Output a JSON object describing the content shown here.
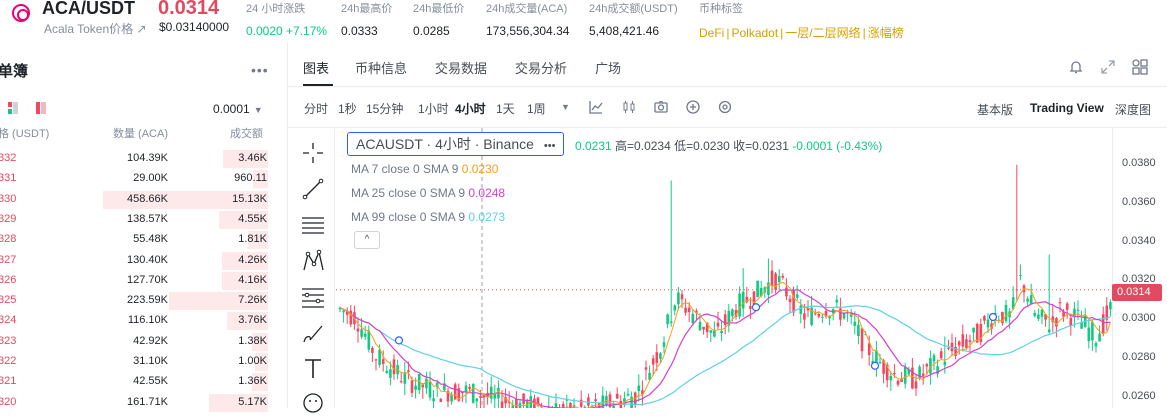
{
  "header": {
    "pair": "ACA/USDT",
    "subname": "Acala Token价格 ↗",
    "price": "0.0314",
    "usd_price": "$0.03140000",
    "change_label": "24 小时涨跌",
    "change_value": "0.0020 +7.17%",
    "high_label": "24h最高价",
    "high_value": "0.0333",
    "low_label": "24h最低价",
    "low_value": "0.0285",
    "vol_aca_label": "24h成交量(ACA)",
    "vol_aca_value": "173,556,304.34",
    "vol_usdt_label": "24h成交额(USDT)",
    "vol_usdt_value": "5,408,421.46",
    "tags_label": "币种标签",
    "tags": [
      "DeFi",
      "Polkadot",
      "一层/二层网络",
      "涨幅榜"
    ]
  },
  "orderbook": {
    "title": "单簿",
    "more": "•••",
    "precision": "0.0001",
    "col_price": "格 (USDT)",
    "col_qty": "数量 (ACA)",
    "col_total": "成交额",
    "rows": [
      {
        "price": "332",
        "qty": "104.39K",
        "total": "3.46K",
        "depth": 0.27
      },
      {
        "price": "331",
        "qty": "29.00K",
        "total": "960.11",
        "depth": 0.09
      },
      {
        "price": "330",
        "qty": "458.66K",
        "total": "15.13K",
        "depth": 1.0
      },
      {
        "price": "329",
        "qty": "138.57K",
        "total": "4.55K",
        "depth": 0.3
      },
      {
        "price": "328",
        "qty": "55.48K",
        "total": "1.81K",
        "depth": 0.12
      },
      {
        "price": "327",
        "qty": "130.40K",
        "total": "4.26K",
        "depth": 0.28
      },
      {
        "price": "326",
        "qty": "127.70K",
        "total": "4.16K",
        "depth": 0.28
      },
      {
        "price": "325",
        "qty": "223.59K",
        "total": "7.26K",
        "depth": 0.6
      },
      {
        "price": "324",
        "qty": "116.10K",
        "total": "3.76K",
        "depth": 0.25
      },
      {
        "price": "323",
        "qty": "42.92K",
        "total": "1.38K",
        "depth": 0.1
      },
      {
        "price": "322",
        "qty": "31.10K",
        "total": "1.00K",
        "depth": 0.08
      },
      {
        "price": "321",
        "qty": "42.55K",
        "total": "1.36K",
        "depth": 0.1
      },
      {
        "price": "320",
        "qty": "161.71K",
        "total": "5.17K",
        "depth": 0.36
      }
    ]
  },
  "tabs": [
    "图表",
    "币种信息",
    "交易数据",
    "交易分析",
    "广场"
  ],
  "timeframes": [
    "分时",
    "1秒",
    "15分钟",
    "1小时",
    "4小时",
    "1天",
    "1周"
  ],
  "active_timeframe": "4小时",
  "views": [
    "基本版",
    "Trading View",
    "深度图"
  ],
  "chart": {
    "legend": "ACAUSDT · 4小时 · Binance",
    "legend_dots": "•••",
    "ohlc_open": "0.0231",
    "ohlc_high": "高=0.0234",
    "ohlc_low": "低=0.0230",
    "ohlc_close": "收=0.0231",
    "ohlc_change": "-0.0001 (-0.43%)",
    "ma7_label": "MA 7 close 0 SMA 9",
    "ma7_value": "0.0230",
    "ma25_label": "MA 25 close 0 SMA 9",
    "ma25_value": "0.0248",
    "ma99_label": "MA 99 close 0 SMA 9",
    "ma99_value": "0.0273",
    "collapse": "^",
    "current_price": "0.0314",
    "axis_ticks": [
      "0.0380",
      "0.0360",
      "0.0340",
      "0.0320",
      "0.0300",
      "0.0280",
      "0.0260"
    ],
    "colors": {
      "up": "#0ecb81",
      "down": "#f6465d",
      "ma7": "#f0a020",
      "ma25": "#d63fd0",
      "ma99": "#5fd0e8",
      "accent": "#e04b5f"
    }
  }
}
